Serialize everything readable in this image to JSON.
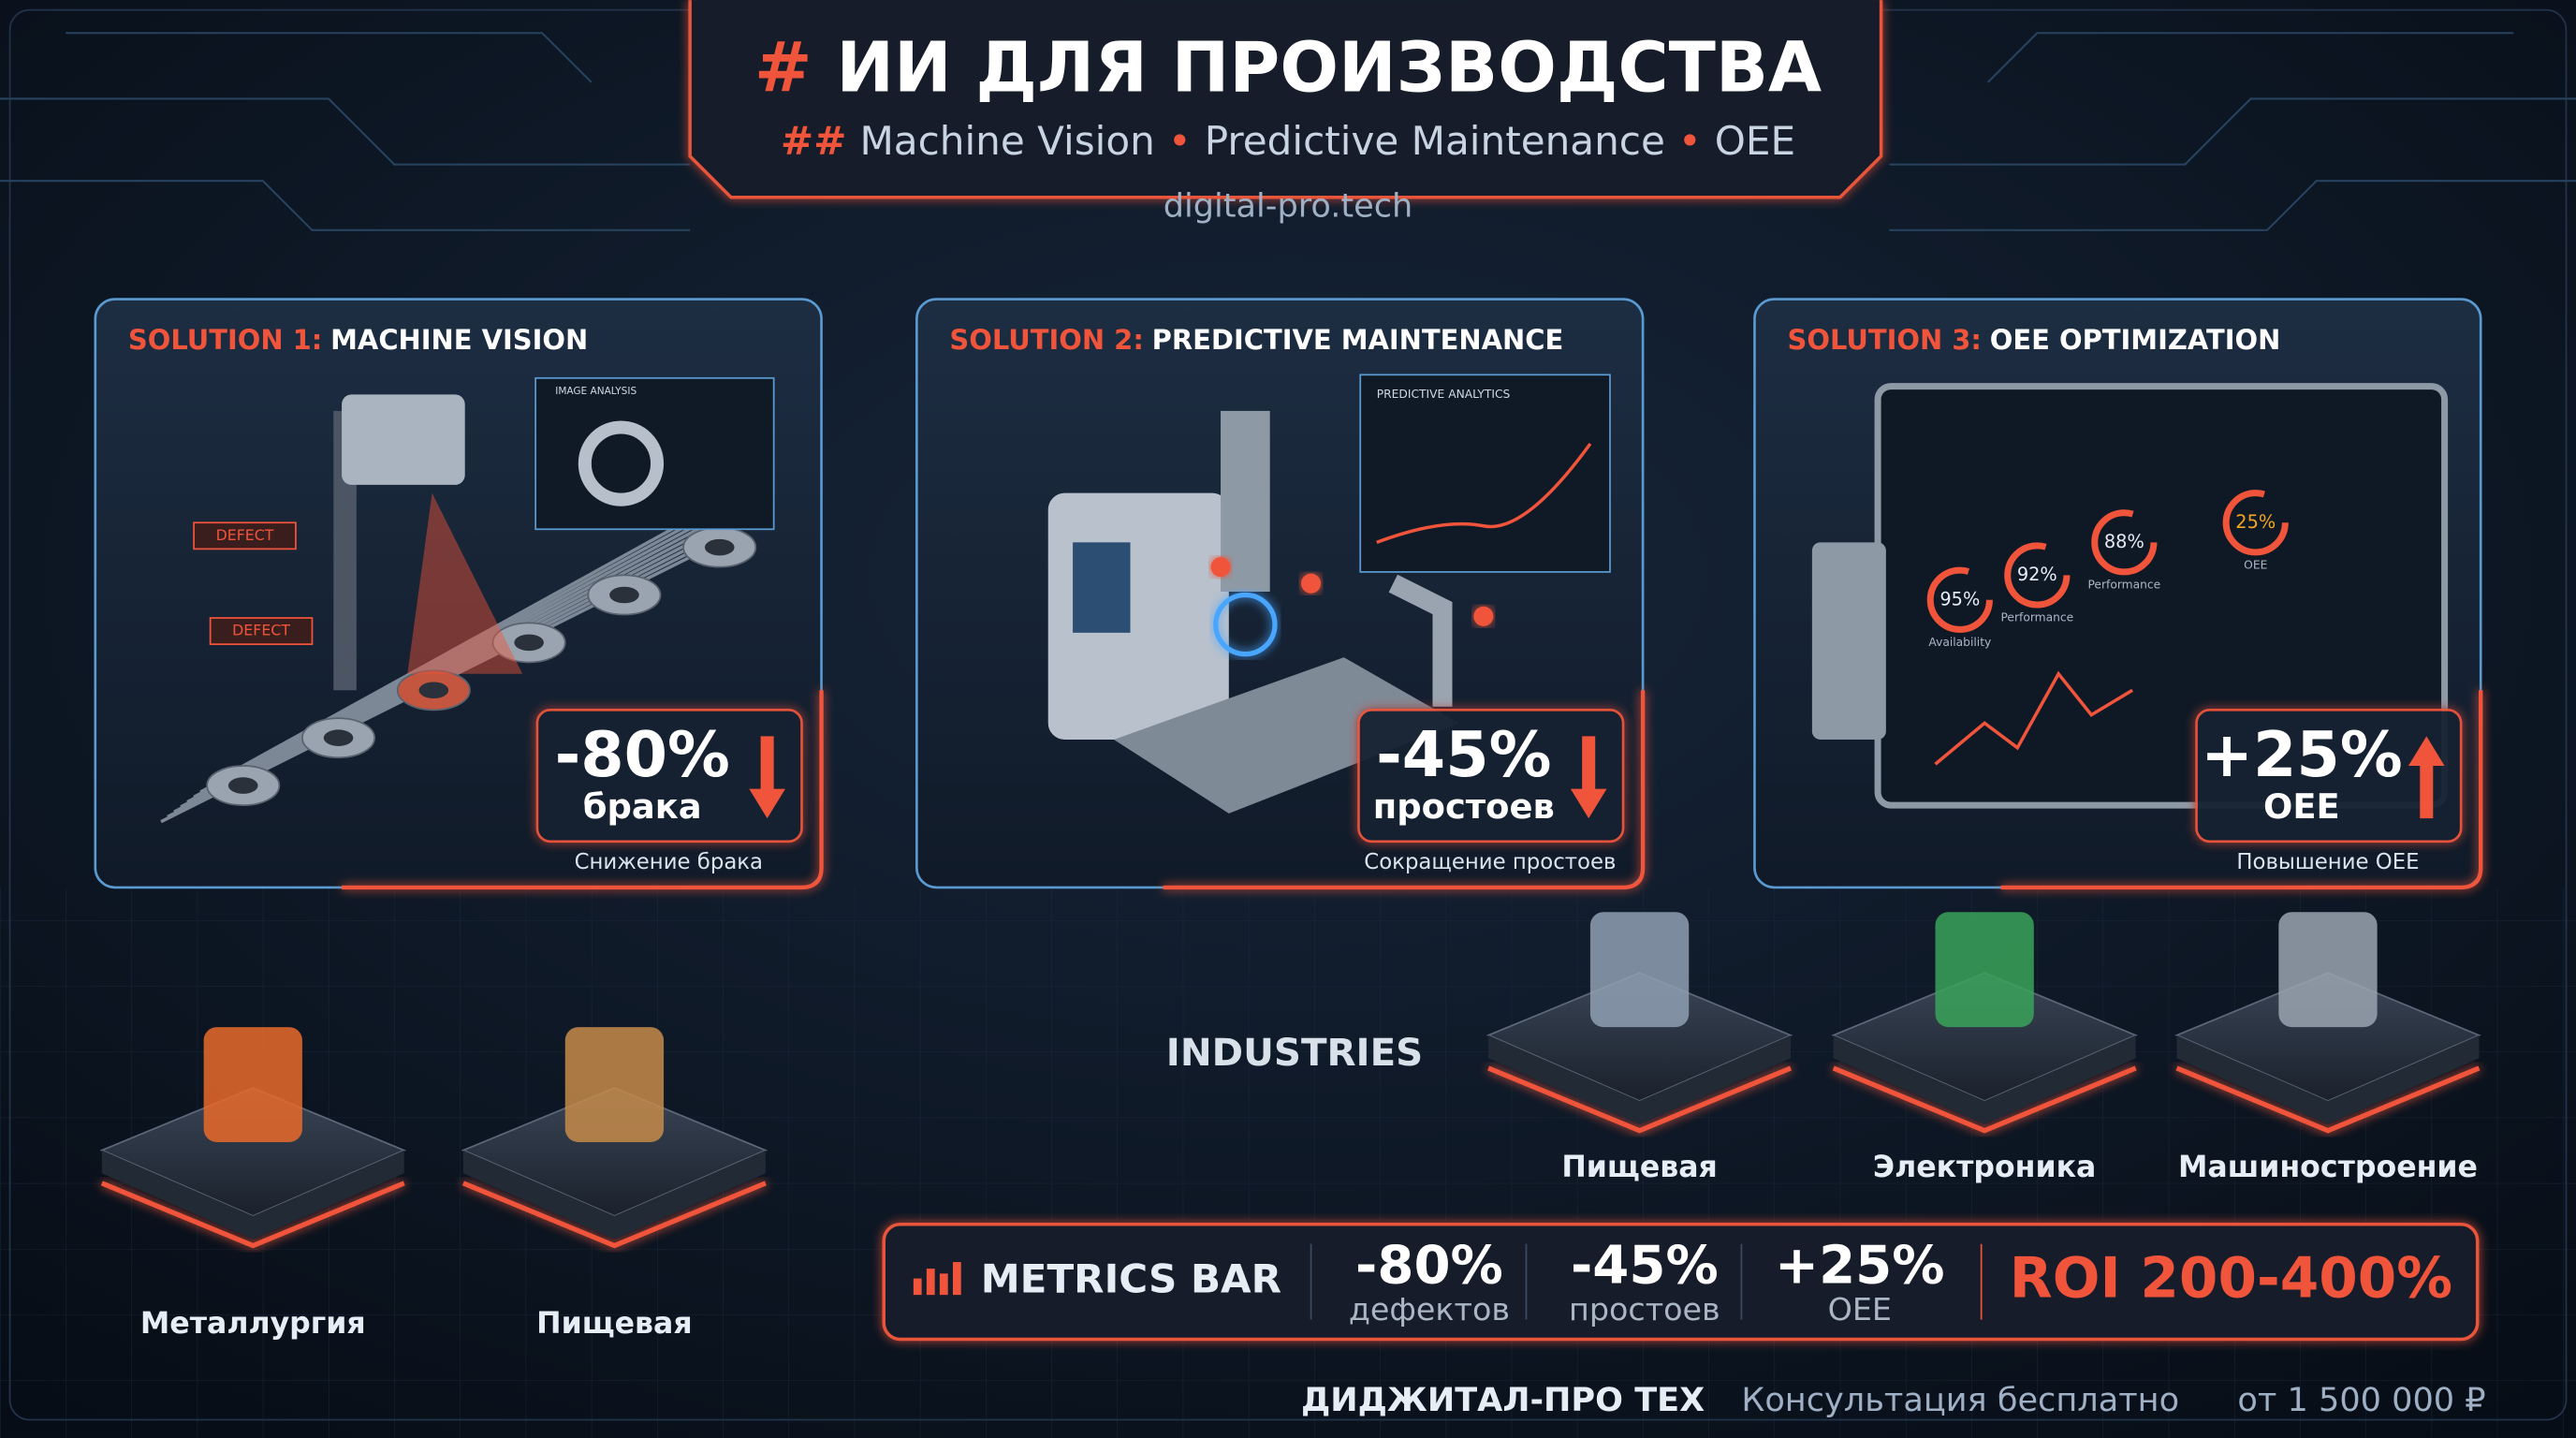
{
  "header": {
    "title_mark": "#",
    "title": "ИИ ДЛЯ ПРОИЗВОДСТВА",
    "subtitle_mark": "##",
    "subtitle_items": [
      "Machine Vision",
      "Predictive Maintenance",
      "OEE"
    ],
    "url": "digital-pro.tech"
  },
  "solutions": [
    {
      "label": "SOLUTION 1:",
      "name": "MACHINE VISION",
      "metric": "-80%",
      "metric_unit": "брака",
      "direction": "down",
      "caption": "Снижение брака",
      "tags": [
        "DEFECT",
        "DEFECT"
      ],
      "screen_title": "IMAGE ANALYSIS"
    },
    {
      "label": "SOLUTION 2:",
      "name": "PREDICTIVE MAINTENANCE",
      "metric": "-45%",
      "metric_unit": "простоев",
      "direction": "down",
      "caption": "Сокращение простоев",
      "screen_title": "PREDICTIVE ANALYTICS"
    },
    {
      "label": "SOLUTION 3:",
      "name": "OEE OPTIMIZATION",
      "metric": "+25%",
      "metric_unit": "OEE",
      "direction": "up",
      "caption": "Повышение OEE",
      "gauges": [
        {
          "value": "95%",
          "label": "Availability"
        },
        {
          "value": "92%",
          "label": "Performance"
        },
        {
          "value": "88%",
          "label": "Performance"
        },
        {
          "value": "25%",
          "label": "OEE"
        }
      ]
    }
  ],
  "industries": {
    "title": "INDUSTRIES",
    "items": [
      "Металлургия",
      "Пищевая",
      "Пищевая",
      "Электроника",
      "Машиностроение"
    ]
  },
  "metrics_bar": {
    "label": "METRICS BAR",
    "items": [
      {
        "value": "-80%",
        "label": "дефектов"
      },
      {
        "value": "-45%",
        "label": "простоев"
      },
      {
        "value": "+25%",
        "label": "OEE"
      }
    ],
    "roi": "ROI 200-400%"
  },
  "footer": {
    "brand": "ДИДЖИТАЛ-ПРО ТЕХ",
    "consult": "Консультация бесплатно",
    "price": "от 1 500 000 ₽"
  }
}
